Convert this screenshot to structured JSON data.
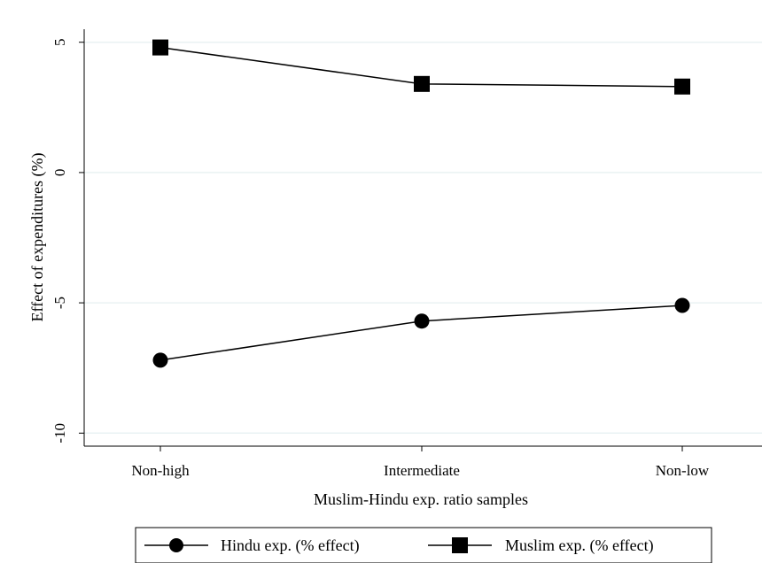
{
  "chart_data": {
    "type": "line",
    "title": "",
    "categories": [
      "Non-high",
      "Intermediate",
      "Non-low"
    ],
    "xlabel": "Muslim-Hindu exp. ratio samples",
    "ylabel": "Effect of expenditures (%)",
    "ylim": [
      -10.5,
      5.5
    ],
    "yticks": [
      -10,
      -5,
      0,
      5
    ],
    "ytick_labels": [
      "-10",
      "-5",
      "0",
      "5"
    ],
    "grid": true,
    "legend_position": "bottom",
    "series": [
      {
        "name": "Hindu exp. (% effect)",
        "marker": "circle",
        "color": "#000000",
        "values": [
          -7.2,
          -5.7,
          -5.1
        ]
      },
      {
        "name": "Muslim exp. (% effect)",
        "marker": "square",
        "color": "#000000",
        "values": [
          4.8,
          3.4,
          3.3
        ]
      }
    ]
  }
}
